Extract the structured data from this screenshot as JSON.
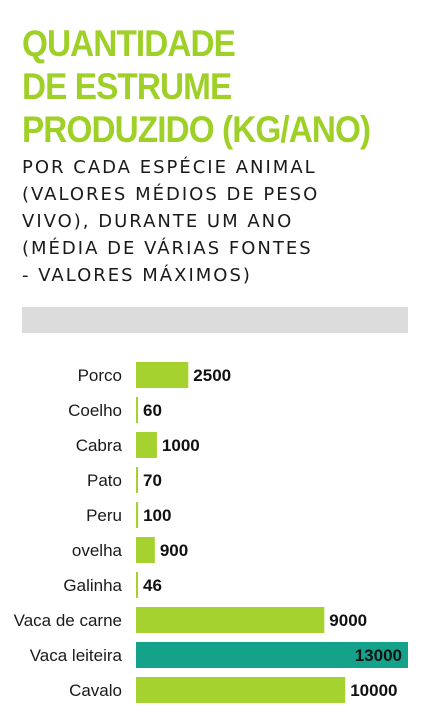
{
  "header": {
    "title_lines": [
      "QUANTIDADE",
      "DE ESTRUME",
      "PRODUZIDO (KG/ANO)"
    ],
    "subtitle_lines": [
      "POR CADA ESPÉCIE ANIMAL",
      "(VALORES MÉDIOS DE PESO",
      "VIVO), DURANTE UM ANO",
      "(MÉDIA DE VÁRIAS FONTES",
      "- VALORES MÁXIMOS)"
    ]
  },
  "chart_data": {
    "type": "bar",
    "orientation": "horizontal",
    "title": "QUANTIDADE DE ESTRUME PRODUZIDO (KG/ANO)",
    "categories": [
      "Porco",
      "Coelho",
      "Cabra",
      "Pato",
      "Peru",
      "ovelha",
      "Galinha",
      "Vaca de carne",
      "Vaca leiteira",
      "Cavalo"
    ],
    "values": [
      2500,
      60,
      1000,
      70,
      100,
      900,
      46,
      9000,
      13000,
      10000
    ],
    "value_labels": [
      "2500",
      "60",
      "1000",
      "70",
      "100",
      "900",
      "46",
      "9000",
      "13000",
      "10000"
    ],
    "xlim": [
      0,
      13000
    ],
    "grid": false,
    "colors": {
      "default": "#a5d22f",
      "highlight": "#14a38a",
      "title": "#9ed028",
      "band": "#dcdcdc"
    },
    "highlight_index": 8
  }
}
